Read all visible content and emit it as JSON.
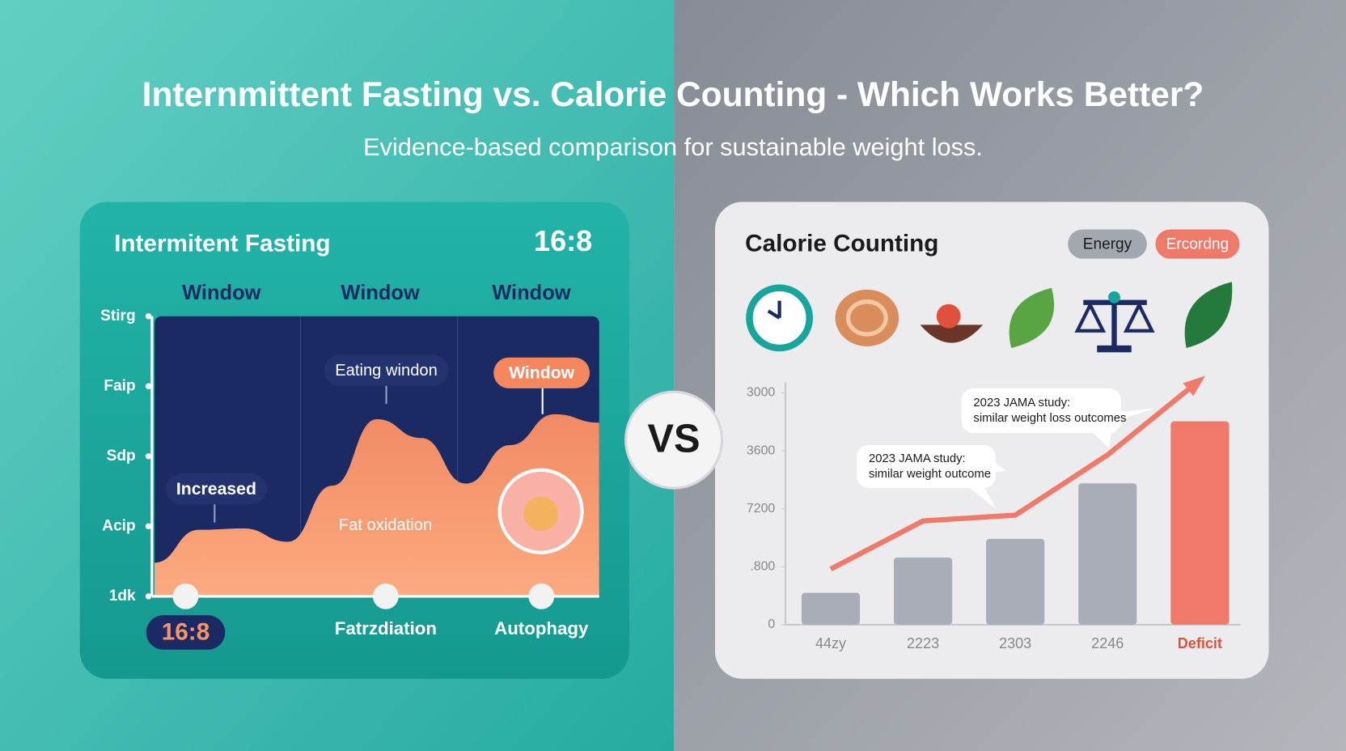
{
  "header": {
    "title": "Internmittent Fasting vs. Calorie Counting - Which Works Better?",
    "subtitle": "Evidence-based comparison for sustainable weight loss."
  },
  "vs": "VS",
  "chart_data": [
    {
      "type": "area",
      "title": "Intermitent Fasting",
      "badge": "16:8",
      "column_labels": [
        "Window",
        "Window",
        "Window"
      ],
      "x": [
        0,
        10,
        20,
        30,
        40,
        50,
        60,
        70,
        80,
        90,
        100
      ],
      "values": [
        0.48,
        0.95,
        0.97,
        0.78,
        1.58,
        2.53,
        2.26,
        1.61,
        2.16,
        2.6,
        2.48
      ],
      "color": "#f7946c",
      "xlim": [
        0,
        100
      ],
      "xticks": [
        {
          "value": 7,
          "label": "16:8"
        },
        {
          "value": 52,
          "label": "Fatrzdiation"
        },
        {
          "value": 87,
          "label": "Autophagy"
        }
      ],
      "ylim": [
        0,
        4
      ],
      "yticks": [
        {
          "value": 0,
          "label": "1dk"
        },
        {
          "value": 1,
          "label": "Acip"
        },
        {
          "value": 2,
          "label": "Sdp"
        },
        {
          "value": 3,
          "label": "Faip"
        },
        {
          "value": 4,
          "label": "Stirg"
        }
      ],
      "annotations": [
        "Eating windon",
        "Window",
        "Increased",
        "Fat oxidation"
      ]
    },
    {
      "type": "bar",
      "title": "Calorie Counting",
      "categories": [
        "44zy",
        "2223",
        "2303",
        "2246",
        "Deficit"
      ],
      "series": [
        {
          "name": "Energy",
          "color": "#a9adb8",
          "colors": [
            "#a9adb8",
            "#a9adb8",
            "#a9adb8",
            "#a9adb8",
            "#f07a6a"
          ],
          "values": [
            0.55,
            1.16,
            1.48,
            2.44,
            3.51
          ]
        },
        {
          "name": "Ercordng",
          "color": "#f07a6a",
          "values": [
            0.96,
            1.79,
            1.89,
            2.93,
            4.22
          ]
        }
      ],
      "ylim": [
        0,
        4.3
      ],
      "yticks": [
        0,
        {
          "value": 1,
          "label": ".800"
        },
        {
          "value": 2,
          "label": "7200"
        },
        {
          "value": 3,
          "label": "3600"
        },
        {
          "value": 4,
          "label": "3000"
        }
      ],
      "annotations": [
        "2023 JAMA study:",
        "similar weight loss outcomes",
        "2023 JAMA study:",
        "similar weight outcome"
      ]
    }
  ]
}
